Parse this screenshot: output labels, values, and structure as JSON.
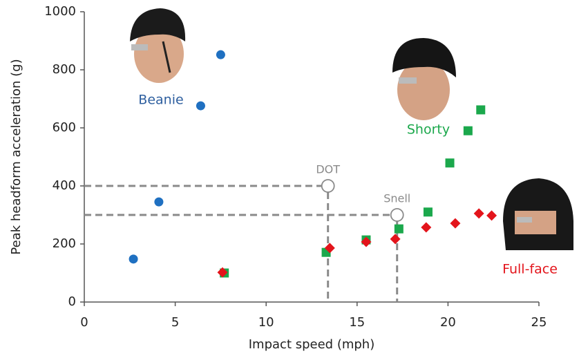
{
  "chart_data": {
    "type": "scatter",
    "x_label": "Impact speed (mph)",
    "y_label": "Peak headform acceleration  (g)",
    "xlim": [
      0,
      25
    ],
    "ylim": [
      0,
      1000
    ],
    "xticks": [
      0,
      5,
      10,
      15,
      20,
      25
    ],
    "yticks": [
      0,
      200,
      400,
      600,
      800,
      1000
    ],
    "grid": false,
    "series": [
      {
        "name": "Beanie",
        "color": "#1f70c1",
        "label_color": "#2e5f9f",
        "marker": "circle",
        "x": [
          2.7,
          4.1,
          6.4,
          7.5
        ],
        "values": [
          148,
          345,
          676,
          852
        ]
      },
      {
        "name": "Shorty",
        "color": "#1ba84c",
        "label_color": "#1ba84c",
        "marker": "square",
        "x": [
          7.7,
          13.3,
          15.5,
          17.3,
          18.9,
          20.1,
          21.1,
          21.8
        ],
        "values": [
          100,
          171,
          214,
          252,
          310,
          479,
          590,
          662
        ]
      },
      {
        "name": "Full-face",
        "color": "#e3141b",
        "label_color": "#e3141b",
        "marker": "diamond",
        "x": [
          7.6,
          13.5,
          15.5,
          17.1,
          18.8,
          20.4,
          21.7,
          22.4
        ],
        "values": [
          102,
          186,
          207,
          217,
          257,
          271,
          305,
          298
        ]
      }
    ],
    "references": [
      {
        "name": "DOT",
        "x": 13.4,
        "value": 400,
        "color": "#8a8a8a"
      },
      {
        "name": "Snell",
        "x": 17.2,
        "value": 300,
        "color": "#8a8a8a"
      }
    ]
  }
}
